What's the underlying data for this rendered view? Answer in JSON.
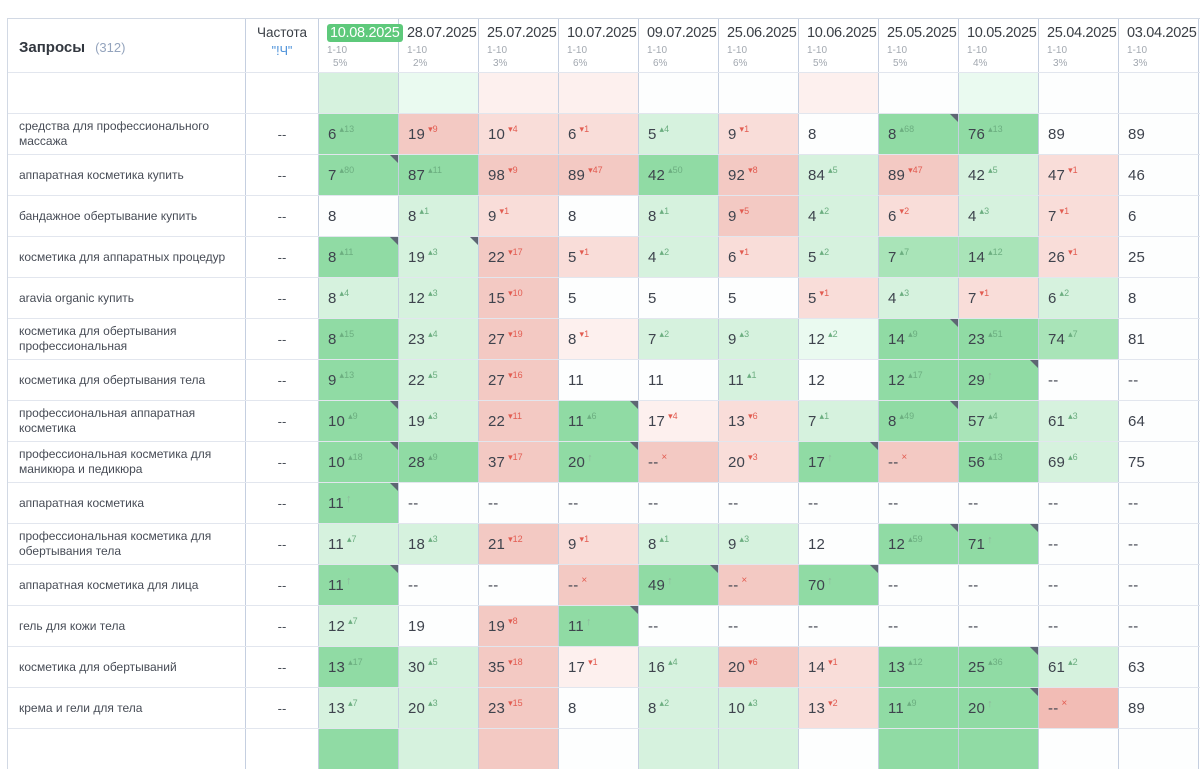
{
  "palette": {
    "pill": "#5ec97b",
    "g0": "#eafaf0",
    "g1": "#d6f2de",
    "g2": "#a9e4b8",
    "g3": "#90dba4",
    "p0": "#fdf0ee",
    "p1": "#f9ddd9",
    "p2": "#f3c9c3",
    "p3": "#f2bcb5",
    "supup": "#6cae80",
    "supdown": "#e25c51",
    "supnew": "#8db99b"
  },
  "header": {
    "queries_label": "Запросы",
    "queries_count": "(312)",
    "frequency_label": "Частота",
    "frequency_link": "\"!Ч\"",
    "columns": [
      {
        "date": "10.08.2025",
        "selected": true,
        "range": "1-10",
        "percent": "5%"
      },
      {
        "date": "28.07.2025",
        "selected": false,
        "range": "1-10",
        "percent": "2%"
      },
      {
        "date": "25.07.2025",
        "selected": false,
        "range": "1-10",
        "percent": "3%"
      },
      {
        "date": "10.07.2025",
        "selected": false,
        "range": "1-10",
        "percent": "6%"
      },
      {
        "date": "09.07.2025",
        "selected": false,
        "range": "1-10",
        "percent": "6%"
      },
      {
        "date": "25.06.2025",
        "selected": false,
        "range": "1-10",
        "percent": "6%"
      },
      {
        "date": "10.06.2025",
        "selected": false,
        "range": "1-10",
        "percent": "5%"
      },
      {
        "date": "25.05.2025",
        "selected": false,
        "range": "1-10",
        "percent": "5%"
      },
      {
        "date": "10.05.2025",
        "selected": false,
        "range": "1-10",
        "percent": "4%"
      },
      {
        "date": "25.04.2025",
        "selected": false,
        "range": "1-10",
        "percent": "3%"
      },
      {
        "date": "03.04.2025",
        "selected": false,
        "range": "1-10",
        "percent": "3%"
      }
    ]
  },
  "rows": [
    {
      "keyword": "средства для профессионального массажа",
      "frequency": "--",
      "cells": [
        {
          "v": "6",
          "d": "13",
          "dir": "up",
          "bg": "g3"
        },
        {
          "v": "19",
          "d": "9",
          "dir": "down",
          "bg": "p2"
        },
        {
          "v": "10",
          "d": "4",
          "dir": "down",
          "bg": "p1"
        },
        {
          "v": "6",
          "d": "1",
          "dir": "down",
          "bg": "p1"
        },
        {
          "v": "5",
          "d": "4",
          "dir": "up",
          "bg": "g1"
        },
        {
          "v": "9",
          "d": "1",
          "dir": "down",
          "bg": "p1"
        },
        {
          "v": "8",
          "bg": "w"
        },
        {
          "v": "8",
          "d": "68",
          "dir": "up",
          "bg": "g3",
          "corner": true
        },
        {
          "v": "76",
          "d": "13",
          "dir": "up",
          "bg": "g3"
        },
        {
          "v": "89",
          "bg": "w"
        },
        {
          "v": "89",
          "bg": "w"
        }
      ]
    },
    {
      "keyword": "аппаратная косметика купить",
      "frequency": "--",
      "cells": [
        {
          "v": "7",
          "d": "80",
          "dir": "up",
          "bg": "g3",
          "corner": true
        },
        {
          "v": "87",
          "d": "11",
          "dir": "up",
          "bg": "g3"
        },
        {
          "v": "98",
          "d": "9",
          "dir": "down",
          "bg": "p2"
        },
        {
          "v": "89",
          "d": "47",
          "dir": "down",
          "bg": "p2"
        },
        {
          "v": "42",
          "d": "50",
          "dir": "up",
          "bg": "g3"
        },
        {
          "v": "92",
          "d": "8",
          "dir": "down",
          "bg": "p2"
        },
        {
          "v": "84",
          "d": "5",
          "dir": "up",
          "bg": "g1"
        },
        {
          "v": "89",
          "d": "47",
          "dir": "down",
          "bg": "p2"
        },
        {
          "v": "42",
          "d": "5",
          "dir": "up",
          "bg": "g1"
        },
        {
          "v": "47",
          "d": "1",
          "dir": "down",
          "bg": "p1"
        },
        {
          "v": "46",
          "bg": "w"
        }
      ]
    },
    {
      "keyword": "бандажное обертывание купить",
      "frequency": "--",
      "cells": [
        {
          "v": "8",
          "bg": "w"
        },
        {
          "v": "8",
          "d": "1",
          "dir": "up",
          "bg": "g1"
        },
        {
          "v": "9",
          "d": "1",
          "dir": "down",
          "bg": "p1"
        },
        {
          "v": "8",
          "bg": "w"
        },
        {
          "v": "8",
          "d": "1",
          "dir": "up",
          "bg": "g1"
        },
        {
          "v": "9",
          "d": "5",
          "dir": "down",
          "bg": "p2"
        },
        {
          "v": "4",
          "d": "2",
          "dir": "up",
          "bg": "g1"
        },
        {
          "v": "6",
          "d": "2",
          "dir": "down",
          "bg": "p1"
        },
        {
          "v": "4",
          "d": "3",
          "dir": "up",
          "bg": "g1"
        },
        {
          "v": "7",
          "d": "1",
          "dir": "down",
          "bg": "p1"
        },
        {
          "v": "6",
          "bg": "w"
        }
      ]
    },
    {
      "keyword": "косметика для аппаратных процедур",
      "frequency": "--",
      "cells": [
        {
          "v": "8",
          "d": "11",
          "dir": "up",
          "bg": "g3",
          "corner": true
        },
        {
          "v": "19",
          "d": "3",
          "dir": "up",
          "bg": "g1",
          "corner": true
        },
        {
          "v": "22",
          "d": "17",
          "dir": "down",
          "bg": "p2"
        },
        {
          "v": "5",
          "d": "1",
          "dir": "down",
          "bg": "p1"
        },
        {
          "v": "4",
          "d": "2",
          "dir": "up",
          "bg": "g1"
        },
        {
          "v": "6",
          "d": "1",
          "dir": "down",
          "bg": "p1"
        },
        {
          "v": "5",
          "d": "2",
          "dir": "up",
          "bg": "g1"
        },
        {
          "v": "7",
          "d": "7",
          "dir": "up",
          "bg": "g2"
        },
        {
          "v": "14",
          "d": "12",
          "dir": "up",
          "bg": "g2"
        },
        {
          "v": "26",
          "d": "1",
          "dir": "down",
          "bg": "p1"
        },
        {
          "v": "25",
          "bg": "w"
        }
      ]
    },
    {
      "keyword": "aravia organic купить",
      "frequency": "--",
      "cells": [
        {
          "v": "8",
          "d": "4",
          "dir": "up",
          "bg": "g1"
        },
        {
          "v": "12",
          "d": "3",
          "dir": "up",
          "bg": "g1"
        },
        {
          "v": "15",
          "d": "10",
          "dir": "down",
          "bg": "p2"
        },
        {
          "v": "5",
          "bg": "w"
        },
        {
          "v": "5",
          "bg": "w"
        },
        {
          "v": "5",
          "bg": "w"
        },
        {
          "v": "5",
          "d": "1",
          "dir": "down",
          "bg": "p1"
        },
        {
          "v": "4",
          "d": "3",
          "dir": "up",
          "bg": "g1"
        },
        {
          "v": "7",
          "d": "1",
          "dir": "down",
          "bg": "p1"
        },
        {
          "v": "6",
          "d": "2",
          "dir": "up",
          "bg": "g1"
        },
        {
          "v": "8",
          "bg": "w"
        }
      ]
    },
    {
      "keyword": "косметика для обертывания профессиональная",
      "frequency": "--",
      "cells": [
        {
          "v": "8",
          "d": "15",
          "dir": "up",
          "bg": "g3"
        },
        {
          "v": "23",
          "d": "4",
          "dir": "up",
          "bg": "g1"
        },
        {
          "v": "27",
          "d": "19",
          "dir": "down",
          "bg": "p2"
        },
        {
          "v": "8",
          "d": "1",
          "dir": "down",
          "bg": "p0"
        },
        {
          "v": "7",
          "d": "2",
          "dir": "up",
          "bg": "g1"
        },
        {
          "v": "9",
          "d": "3",
          "dir": "up",
          "bg": "g1"
        },
        {
          "v": "12",
          "d": "2",
          "dir": "up",
          "bg": "g0"
        },
        {
          "v": "14",
          "d": "9",
          "dir": "up",
          "bg": "g3",
          "corner": true
        },
        {
          "v": "23",
          "d": "51",
          "dir": "up",
          "bg": "g3"
        },
        {
          "v": "74",
          "d": "7",
          "dir": "up",
          "bg": "g2"
        },
        {
          "v": "81",
          "bg": "w"
        }
      ]
    },
    {
      "keyword": "косметика для обертывания тела",
      "frequency": "--",
      "cells": [
        {
          "v": "9",
          "d": "13",
          "dir": "up",
          "bg": "g3"
        },
        {
          "v": "22",
          "d": "5",
          "dir": "up",
          "bg": "g1"
        },
        {
          "v": "27",
          "d": "16",
          "dir": "down",
          "bg": "p2"
        },
        {
          "v": "11",
          "bg": "w"
        },
        {
          "v": "11",
          "bg": "w"
        },
        {
          "v": "11",
          "d": "1",
          "dir": "up",
          "bg": "g1"
        },
        {
          "v": "12",
          "bg": "w"
        },
        {
          "v": "12",
          "d": "17",
          "dir": "up",
          "bg": "g3"
        },
        {
          "v": "29",
          "dir": "new",
          "bg": "g3",
          "corner": true
        },
        {
          "v": "--",
          "bg": "w"
        },
        {
          "v": "--",
          "bg": "w"
        }
      ]
    },
    {
      "keyword": "профессиональная аппаратная косметика",
      "frequency": "--",
      "cells": [
        {
          "v": "10",
          "d": "9",
          "dir": "up",
          "bg": "g3",
          "corner": true
        },
        {
          "v": "19",
          "d": "3",
          "dir": "up",
          "bg": "g1"
        },
        {
          "v": "22",
          "d": "11",
          "dir": "down",
          "bg": "p2"
        },
        {
          "v": "11",
          "d": "6",
          "dir": "up",
          "bg": "g3",
          "corner": true
        },
        {
          "v": "17",
          "d": "4",
          "dir": "down",
          "bg": "p0"
        },
        {
          "v": "13",
          "d": "6",
          "dir": "down",
          "bg": "p1"
        },
        {
          "v": "7",
          "d": "1",
          "dir": "up",
          "bg": "g1"
        },
        {
          "v": "8",
          "d": "49",
          "dir": "up",
          "bg": "g3",
          "corner": true
        },
        {
          "v": "57",
          "d": "4",
          "dir": "up",
          "bg": "g2"
        },
        {
          "v": "61",
          "d": "3",
          "dir": "up",
          "bg": "g1"
        },
        {
          "v": "64",
          "bg": "w"
        }
      ]
    },
    {
      "keyword": "профессиональная косметика для маникюра и педикюра",
      "frequency": "--",
      "cells": [
        {
          "v": "10",
          "d": "18",
          "dir": "up",
          "bg": "g3",
          "corner": true
        },
        {
          "v": "28",
          "d": "9",
          "dir": "up",
          "bg": "g3"
        },
        {
          "v": "37",
          "d": "17",
          "dir": "down",
          "bg": "p2"
        },
        {
          "v": "20",
          "dir": "new",
          "bg": "g3",
          "corner": true
        },
        {
          "v": "--",
          "dir": "lost",
          "bg": "p2"
        },
        {
          "v": "20",
          "d": "3",
          "dir": "down",
          "bg": "p1"
        },
        {
          "v": "17",
          "dir": "new",
          "bg": "g3",
          "corner": true
        },
        {
          "v": "--",
          "dir": "lost",
          "bg": "p2"
        },
        {
          "v": "56",
          "d": "13",
          "dir": "up",
          "bg": "g3"
        },
        {
          "v": "69",
          "d": "6",
          "dir": "up",
          "bg": "g1"
        },
        {
          "v": "75",
          "bg": "w"
        }
      ]
    },
    {
      "keyword": "аппаратная косметика",
      "frequency": "--",
      "cells": [
        {
          "v": "11",
          "dir": "new",
          "bg": "g3",
          "corner": true
        },
        {
          "v": "--",
          "bg": "w"
        },
        {
          "v": "--",
          "bg": "w"
        },
        {
          "v": "--",
          "bg": "w"
        },
        {
          "v": "--",
          "bg": "w"
        },
        {
          "v": "--",
          "bg": "w"
        },
        {
          "v": "--",
          "bg": "w"
        },
        {
          "v": "--",
          "bg": "w"
        },
        {
          "v": "--",
          "bg": "w"
        },
        {
          "v": "--",
          "bg": "w"
        },
        {
          "v": "--",
          "bg": "w"
        }
      ]
    },
    {
      "keyword": "профессиональная косметика для обертывания тела",
      "frequency": "--",
      "cells": [
        {
          "v": "11",
          "d": "7",
          "dir": "up",
          "bg": "g1"
        },
        {
          "v": "18",
          "d": "3",
          "dir": "up",
          "bg": "g1"
        },
        {
          "v": "21",
          "d": "12",
          "dir": "down",
          "bg": "p2"
        },
        {
          "v": "9",
          "d": "1",
          "dir": "down",
          "bg": "p1"
        },
        {
          "v": "8",
          "d": "1",
          "dir": "up",
          "bg": "g1"
        },
        {
          "v": "9",
          "d": "3",
          "dir": "up",
          "bg": "g1"
        },
        {
          "v": "12",
          "bg": "w"
        },
        {
          "v": "12",
          "d": "59",
          "dir": "up",
          "bg": "g3",
          "corner": true
        },
        {
          "v": "71",
          "dir": "new",
          "bg": "g3",
          "corner": true
        },
        {
          "v": "--",
          "bg": "w"
        },
        {
          "v": "--",
          "bg": "w"
        }
      ]
    },
    {
      "keyword": "аппаратная косметика для лица",
      "frequency": "--",
      "cells": [
        {
          "v": "11",
          "dir": "new",
          "bg": "g3",
          "corner": true
        },
        {
          "v": "--",
          "bg": "w"
        },
        {
          "v": "--",
          "bg": "w"
        },
        {
          "v": "--",
          "dir": "lost",
          "bg": "p2"
        },
        {
          "v": "49",
          "dir": "new",
          "bg": "g3",
          "corner": true
        },
        {
          "v": "--",
          "dir": "lost",
          "bg": "p2"
        },
        {
          "v": "70",
          "dir": "new",
          "bg": "g3",
          "corner": true
        },
        {
          "v": "--",
          "bg": "w"
        },
        {
          "v": "--",
          "bg": "w"
        },
        {
          "v": "--",
          "bg": "w"
        },
        {
          "v": "--",
          "bg": "w"
        }
      ]
    },
    {
      "keyword": "гель для кожи тела",
      "frequency": "--",
      "cells": [
        {
          "v": "12",
          "d": "7",
          "dir": "up",
          "bg": "g1"
        },
        {
          "v": "19",
          "bg": "w"
        },
        {
          "v": "19",
          "d": "8",
          "dir": "down",
          "bg": "p2"
        },
        {
          "v": "11",
          "dir": "new",
          "bg": "g3",
          "corner": true
        },
        {
          "v": "--",
          "bg": "w"
        },
        {
          "v": "--",
          "bg": "w"
        },
        {
          "v": "--",
          "bg": "w"
        },
        {
          "v": "--",
          "bg": "w"
        },
        {
          "v": "--",
          "bg": "w"
        },
        {
          "v": "--",
          "bg": "w"
        },
        {
          "v": "--",
          "bg": "w"
        }
      ]
    },
    {
      "keyword": "косметика для обертываний",
      "frequency": "--",
      "cells": [
        {
          "v": "13",
          "d": "17",
          "dir": "up",
          "bg": "g3"
        },
        {
          "v": "30",
          "d": "5",
          "dir": "up",
          "bg": "g1"
        },
        {
          "v": "35",
          "d": "18",
          "dir": "down",
          "bg": "p2"
        },
        {
          "v": "17",
          "d": "1",
          "dir": "down",
          "bg": "p0"
        },
        {
          "v": "16",
          "d": "4",
          "dir": "up",
          "bg": "g1"
        },
        {
          "v": "20",
          "d": "6",
          "dir": "down",
          "bg": "p2"
        },
        {
          "v": "14",
          "d": "1",
          "dir": "down",
          "bg": "p1"
        },
        {
          "v": "13",
          "d": "12",
          "dir": "up",
          "bg": "g3"
        },
        {
          "v": "25",
          "d": "36",
          "dir": "up",
          "bg": "g3",
          "corner": true
        },
        {
          "v": "61",
          "d": "2",
          "dir": "up",
          "bg": "g1"
        },
        {
          "v": "63",
          "bg": "w"
        }
      ]
    },
    {
      "keyword": "крема и гели для тела",
      "frequency": "--",
      "cells": [
        {
          "v": "13",
          "d": "7",
          "dir": "up",
          "bg": "g1"
        },
        {
          "v": "20",
          "d": "3",
          "dir": "up",
          "bg": "g1"
        },
        {
          "v": "23",
          "d": "15",
          "dir": "down",
          "bg": "p2"
        },
        {
          "v": "8",
          "bg": "w"
        },
        {
          "v": "8",
          "d": "2",
          "dir": "up",
          "bg": "g1"
        },
        {
          "v": "10",
          "d": "3",
          "dir": "up",
          "bg": "g1"
        },
        {
          "v": "13",
          "d": "2",
          "dir": "down",
          "bg": "p1"
        },
        {
          "v": "11",
          "d": "9",
          "dir": "up",
          "bg": "g3"
        },
        {
          "v": "20",
          "dir": "new",
          "bg": "g3",
          "corner": true
        },
        {
          "v": "--",
          "dir": "lost",
          "bg": "p3"
        },
        {
          "v": "89",
          "bg": "w"
        }
      ]
    }
  ],
  "partial_top": [
    "g1",
    "g0",
    "p0",
    "p0",
    "w",
    "w",
    "p0",
    "w",
    "g0",
    "w",
    "w"
  ],
  "partial_bottom": [
    "g3",
    "g1",
    "p2",
    "w",
    "g1",
    "g1",
    "w",
    "g3",
    "g3",
    "w",
    "w"
  ]
}
